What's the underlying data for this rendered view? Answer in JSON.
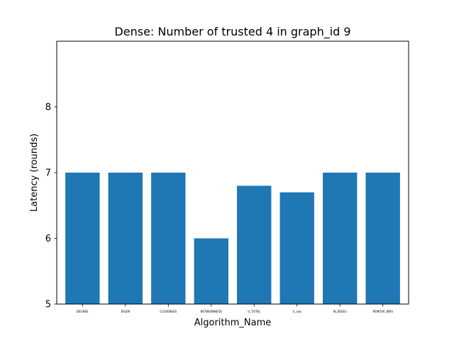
{
  "chart_data": {
    "type": "bar",
    "title": "Dense: Number of trusted 4 in graph_id 9",
    "xlabel": "Algorithm_Name",
    "ylabel": "Latency (rounds)",
    "categories": [
      "DEGREE",
      "EIGEN",
      "CLOSENESS",
      "BETWEENNESS",
      "U_TOTAL",
      "U_sub",
      "W_EDGEs",
      "REMOVE_NEIS"
    ],
    "values": [
      7,
      7,
      7,
      6,
      6.8,
      6.7,
      7,
      7
    ],
    "ylim": [
      5,
      9
    ],
    "yticks": [
      5,
      6,
      7,
      8
    ],
    "yticks_labels": [
      "5",
      "6",
      "7",
      "8"
    ],
    "bar_color": "#1f77b4",
    "grid": false,
    "legend": "none"
  }
}
